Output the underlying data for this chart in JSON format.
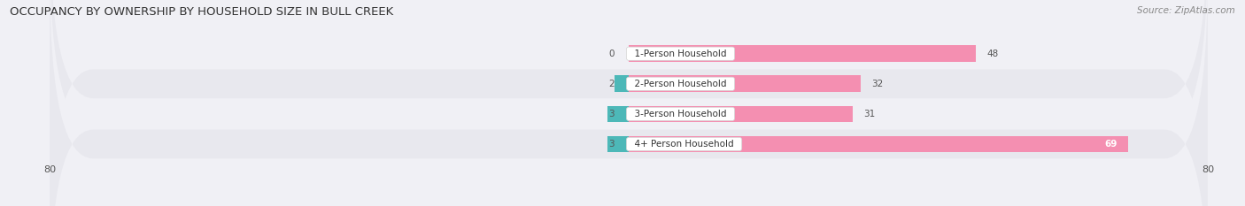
{
  "title": "OCCUPANCY BY OWNERSHIP BY HOUSEHOLD SIZE IN BULL CREEK",
  "source": "Source: ZipAtlas.com",
  "categories": [
    "1-Person Household",
    "2-Person Household",
    "3-Person Household",
    "4+ Person Household"
  ],
  "owner_values": [
    0,
    2,
    3,
    3
  ],
  "renter_values": [
    48,
    32,
    31,
    69
  ],
  "owner_color": "#4db8b8",
  "renter_color": "#f48fb1",
  "axis_max": 80,
  "axis_min": -80,
  "background_color": "#f0f0f5",
  "row_bg_odd": "#e8e8ee",
  "row_bg_even": "#f0f0f5",
  "title_fontsize": 9.5,
  "tick_fontsize": 8,
  "bar_height": 0.55
}
